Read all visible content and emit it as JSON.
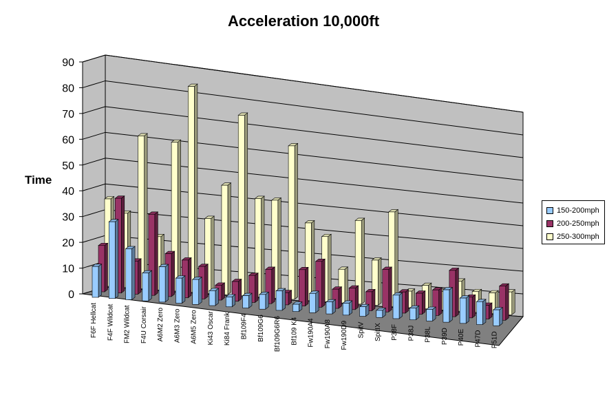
{
  "chart_data": {
    "type": "bar",
    "title": "Acceleration 10,000ft",
    "xlabel": "",
    "ylabel": "Time",
    "ylim": [
      0,
      90
    ],
    "yticks": [
      0,
      10,
      20,
      30,
      40,
      50,
      60,
      70,
      80,
      90
    ],
    "grid": true,
    "legend_position": "right",
    "categories": [
      "F6F Hellcat",
      "F4F Wildcat",
      "FM2 Wildcat",
      "F4U Corsair",
      "A6M2 Zero",
      "A6M3 Zero",
      "A6M5 Zero",
      "Ki43 Oscar",
      "Ki84 Frank",
      "Bf109F4",
      "Bf109G6",
      "Bf109G6R6",
      "Bf109 K4",
      "Fw190A4",
      "Fw190A8",
      "Fw190D9",
      "SpitV",
      "SpitIX",
      "P38F",
      "P38J",
      "P38L",
      "P39D",
      "P40E",
      "P47D",
      "P51D"
    ],
    "series": [
      {
        "name": "150-200mph",
        "color": "#99ccff",
        "values": [
          12,
          30,
          20,
          11,
          14,
          10,
          10,
          6,
          4,
          5,
          6,
          8,
          3,
          8,
          5,
          5,
          4,
          3,
          10,
          5,
          5,
          14,
          11,
          10,
          7
        ]
      },
      {
        "name": "200-250mph",
        "color": "#993366",
        "values": [
          18,
          37,
          13,
          32,
          17,
          15,
          13,
          6,
          8,
          11,
          14,
          5,
          15,
          19,
          8,
          9,
          8,
          18,
          9,
          9,
          11,
          20,
          9,
          6,
          15
        ]
      },
      {
        "name": "250-300mph",
        "color": "#ffffcc",
        "values": [
          34,
          29,
          60,
          21,
          59,
          82,
          30,
          44,
          73,
          40,
          40,
          63,
          32,
          27,
          14,
          35,
          19,
          40,
          7,
          10,
          8,
          13,
          9,
          9,
          10
        ]
      }
    ]
  }
}
